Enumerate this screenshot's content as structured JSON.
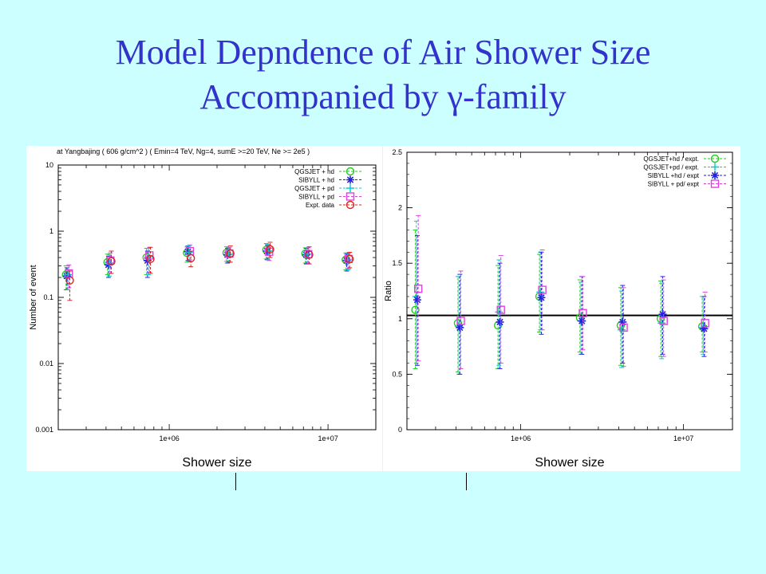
{
  "slide": {
    "title_line1": "Model Depndence of Air Shower Size",
    "title_line2": "Accompanied by γ-family"
  },
  "colors": {
    "qgsjet_hd": "#22cc22",
    "sibyll_hd": "#2222dd",
    "qgsjet_pd": "#00cccc",
    "sibyll_pd": "#dd44dd",
    "expt": "#dd2222",
    "title": "#3333cc"
  },
  "chart_data": [
    {
      "type": "scatter",
      "title": "at  Yangbajing  ( 606 g/cm^2 ) ( Emin=4 TeV, Ng=4, sumE >=20 TeV, Ne >= 2e5 )",
      "xlabel": "Shower size",
      "ylabel": "Number  of  event",
      "xscale": "log",
      "yscale": "log",
      "xlim": [
        200000,
        20000000
      ],
      "ylim": [
        0.001,
        10
      ],
      "x_ticks": [
        {
          "value": 1000000,
          "label": "1e+06"
        },
        {
          "value": 10000000,
          "label": "1e+07"
        }
      ],
      "y_ticks": [
        {
          "value": 10,
          "label": "10"
        },
        {
          "value": 1,
          "label": "1"
        },
        {
          "value": 0.1,
          "label": "0.1"
        },
        {
          "value": 0.01,
          "label": "0.01"
        },
        {
          "value": 0.001,
          "label": "0.001"
        }
      ],
      "grid": false,
      "legend_position": "top-right",
      "series": [
        {
          "name": "QGSJET + hd",
          "marker": "circle",
          "color": "#22cc22",
          "x": [
            230000,
            420000,
            740000,
            1330000,
            2360000,
            4200000,
            7400000,
            13300000
          ],
          "y": [
            0.22,
            0.34,
            0.4,
            0.47,
            0.47,
            0.52,
            0.46,
            0.37
          ],
          "err_low": [
            0.13,
            0.22,
            0.22,
            0.34,
            0.35,
            0.38,
            0.33,
            0.26
          ],
          "err_high": [
            0.3,
            0.45,
            0.55,
            0.58,
            0.58,
            0.65,
            0.56,
            0.47
          ]
        },
        {
          "name": "SIBYLL  + hd",
          "marker": "asterisk",
          "color": "#2222dd",
          "x": [
            230000,
            420000,
            740000,
            1330000,
            2360000,
            4200000,
            7400000,
            13300000
          ],
          "y": [
            0.21,
            0.31,
            0.36,
            0.49,
            0.44,
            0.5,
            0.44,
            0.36
          ],
          "err_low": [
            0.13,
            0.2,
            0.2,
            0.36,
            0.33,
            0.37,
            0.32,
            0.25
          ],
          "err_high": [
            0.28,
            0.42,
            0.5,
            0.6,
            0.55,
            0.62,
            0.55,
            0.45
          ]
        },
        {
          "name": "QGSJET + pd",
          "marker": "plus",
          "color": "#00cccc",
          "x": [
            230000,
            420000,
            740000,
            1330000,
            2360000,
            4200000,
            7400000,
            13300000
          ],
          "y": [
            0.22,
            0.33,
            0.41,
            0.48,
            0.45,
            0.5,
            0.45,
            0.37
          ],
          "err_low": [
            0.13,
            0.21,
            0.22,
            0.35,
            0.34,
            0.37,
            0.33,
            0.26
          ],
          "err_high": [
            0.3,
            0.44,
            0.55,
            0.6,
            0.56,
            0.63,
            0.56,
            0.46
          ]
        },
        {
          "name": "SIBYLL  + pd",
          "marker": "square",
          "color": "#dd44dd",
          "x": [
            230000,
            420000,
            740000,
            1330000,
            2360000,
            4200000,
            7400000,
            13300000
          ],
          "y": [
            0.23,
            0.36,
            0.43,
            0.5,
            0.46,
            0.49,
            0.45,
            0.38
          ],
          "err_low": [
            0.14,
            0.23,
            0.24,
            0.37,
            0.34,
            0.36,
            0.33,
            0.27
          ],
          "err_high": [
            0.31,
            0.47,
            0.57,
            0.62,
            0.57,
            0.61,
            0.56,
            0.47
          ]
        },
        {
          "name": "Expt. data",
          "marker": "circle",
          "color": "#dd2222",
          "x": [
            230000,
            420000,
            740000,
            1330000,
            2360000,
            4200000,
            7400000,
            13300000
          ],
          "y": [
            0.18,
            0.35,
            0.38,
            0.39,
            0.46,
            0.53,
            0.44,
            0.38
          ],
          "err_low": [
            0.09,
            0.23,
            0.23,
            0.29,
            0.34,
            0.4,
            0.32,
            0.28
          ],
          "err_high": [
            0.25,
            0.5,
            0.57,
            0.5,
            0.6,
            0.68,
            0.58,
            0.48
          ]
        }
      ]
    },
    {
      "type": "scatter",
      "title": "",
      "xlabel": "Shower  size",
      "ylabel": "Ratio",
      "xscale": "log",
      "yscale": "linear",
      "xlim": [
        200000,
        20000000
      ],
      "ylim": [
        0,
        2.5
      ],
      "x_ticks": [
        {
          "value": 1000000,
          "label": "1e+06"
        },
        {
          "value": 10000000,
          "label": "1e+07"
        }
      ],
      "y_ticks": [
        {
          "value": 2.5,
          "label": "2.5"
        },
        {
          "value": 2,
          "label": "2"
        },
        {
          "value": 1.5,
          "label": "1.5"
        },
        {
          "value": 1,
          "label": "1"
        },
        {
          "value": 0.5,
          "label": "0.5"
        },
        {
          "value": 0,
          "label": "0"
        }
      ],
      "reference_line": 1.03,
      "grid": false,
      "legend_position": "top-right",
      "series": [
        {
          "name": "QGSJET+hd / expt.",
          "marker": "circle",
          "color": "#22cc22",
          "x": [
            230000,
            420000,
            740000,
            1330000,
            2360000,
            4200000,
            7400000,
            13300000
          ],
          "y": [
            1.08,
            0.96,
            0.94,
            1.2,
            1.01,
            0.94,
            1.0,
            0.93
          ],
          "err_low": [
            0.55,
            0.52,
            0.55,
            0.88,
            0.7,
            0.58,
            0.66,
            0.7
          ],
          "err_high": [
            1.8,
            1.38,
            1.48,
            1.58,
            1.35,
            1.28,
            1.34,
            1.2
          ]
        },
        {
          "name": "QGSJET+pd / expt.",
          "marker": "plus",
          "color": "#00cccc",
          "x": [
            230000,
            420000,
            740000,
            1330000,
            2360000,
            4200000,
            7400000,
            13300000
          ],
          "y": [
            1.2,
            0.93,
            1.06,
            1.24,
            0.98,
            0.9,
            0.96,
            0.92
          ],
          "err_low": [
            0.6,
            0.5,
            0.58,
            0.9,
            0.68,
            0.56,
            0.64,
            0.68
          ],
          "err_high": [
            1.88,
            1.38,
            1.53,
            1.6,
            1.33,
            1.25,
            1.32,
            1.2
          ]
        },
        {
          "name": "SIBYLL  +hd / expt",
          "marker": "asterisk",
          "color": "#2222dd",
          "x": [
            230000,
            420000,
            740000,
            1330000,
            2360000,
            4200000,
            7400000,
            13300000
          ],
          "y": [
            1.17,
            0.92,
            0.97,
            1.19,
            0.98,
            0.97,
            1.04,
            0.91
          ],
          "err_low": [
            0.58,
            0.5,
            0.55,
            0.86,
            0.68,
            0.6,
            0.68,
            0.66
          ],
          "err_high": [
            1.75,
            1.4,
            1.5,
            1.6,
            1.38,
            1.3,
            1.38,
            1.2
          ]
        },
        {
          "name": "SIBYLL  + pd/ expt",
          "marker": "square",
          "color": "#dd44dd",
          "x": [
            230000,
            420000,
            740000,
            1330000,
            2360000,
            4200000,
            7400000,
            13300000
          ],
          "y": [
            1.27,
            0.98,
            1.08,
            1.26,
            1.05,
            0.92,
            0.98,
            0.96
          ],
          "err_low": [
            0.62,
            0.55,
            0.6,
            0.9,
            0.72,
            0.57,
            0.66,
            0.7
          ],
          "err_high": [
            1.93,
            1.43,
            1.57,
            1.62,
            1.38,
            1.28,
            1.35,
            1.24
          ]
        }
      ]
    }
  ]
}
